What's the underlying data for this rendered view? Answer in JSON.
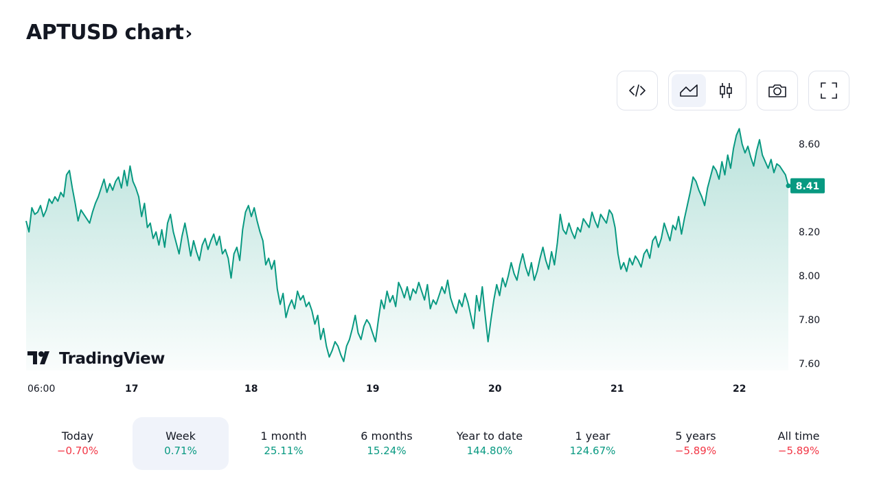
{
  "header": {
    "title": "APTUSD chart",
    "chevron": "›"
  },
  "toolbar": {
    "buttons": [
      {
        "name": "embed-code-icon"
      },
      {
        "name": "area-chart-icon",
        "active": true
      },
      {
        "name": "candlestick-chart-icon"
      },
      {
        "name": "camera-icon"
      },
      {
        "name": "fullscreen-icon"
      }
    ]
  },
  "chart_data": {
    "type": "area",
    "title": "APTUSD chart",
    "xlabel": "",
    "ylabel": "",
    "x_ticks": [
      "06:00",
      "17",
      "18",
      "19",
      "20",
      "21",
      "22"
    ],
    "y_ticks": [
      "8.60",
      "8.20",
      "8.00",
      "7.80",
      "7.60"
    ],
    "ylim": [
      7.55,
      8.68
    ],
    "last_value": "8.41",
    "colors": {
      "line": "#089981",
      "fill_top": "#089981",
      "label_bg": "#089981"
    },
    "grid": false,
    "watermark": "TradingView",
    "series": [
      {
        "values": [
          8.25,
          8.2,
          8.31,
          8.28,
          8.29,
          8.32,
          8.27,
          8.3,
          8.35,
          8.33,
          8.36,
          8.34,
          8.38,
          8.36,
          8.46,
          8.48,
          8.4,
          8.33,
          8.25,
          8.3,
          8.28,
          8.26,
          8.24,
          8.29,
          8.33,
          8.36,
          8.4,
          8.44,
          8.38,
          8.42,
          8.39,
          8.43,
          8.45,
          8.4,
          8.48,
          8.41,
          8.5,
          8.43,
          8.4,
          8.36,
          8.27,
          8.33,
          8.22,
          8.24,
          8.17,
          8.2,
          8.14,
          8.21,
          8.13,
          8.24,
          8.28,
          8.2,
          8.15,
          8.1,
          8.18,
          8.24,
          8.17,
          8.09,
          8.16,
          8.11,
          8.07,
          8.14,
          8.17,
          8.12,
          8.16,
          8.19,
          8.14,
          8.18,
          8.1,
          8.12,
          8.08,
          7.99,
          8.1,
          8.13,
          8.07,
          8.21,
          8.29,
          8.32,
          8.27,
          8.31,
          8.25,
          8.2,
          8.16,
          8.05,
          8.08,
          8.03,
          8.07,
          7.94,
          7.87,
          7.92,
          7.81,
          7.86,
          7.89,
          7.85,
          7.93,
          7.89,
          7.91,
          7.86,
          7.88,
          7.84,
          7.78,
          7.82,
          7.71,
          7.76,
          7.68,
          7.63,
          7.66,
          7.7,
          7.68,
          7.64,
          7.61,
          7.68,
          7.71,
          7.76,
          7.82,
          7.74,
          7.71,
          7.77,
          7.8,
          7.78,
          7.74,
          7.7,
          7.8,
          7.89,
          7.85,
          7.93,
          7.88,
          7.91,
          7.86,
          7.97,
          7.94,
          7.9,
          7.95,
          7.89,
          7.94,
          7.92,
          7.97,
          7.93,
          7.89,
          7.96,
          7.85,
          7.89,
          7.87,
          7.91,
          7.95,
          7.92,
          7.98,
          7.9,
          7.86,
          7.83,
          7.89,
          7.86,
          7.92,
          7.88,
          7.82,
          7.76,
          7.91,
          7.84,
          7.95,
          7.82,
          7.7,
          7.8,
          7.89,
          7.96,
          7.91,
          7.99,
          7.95,
          8.0,
          8.06,
          8.01,
          7.98,
          8.05,
          8.1,
          8.04,
          8.0,
          8.06,
          7.98,
          8.02,
          8.08,
          8.13,
          8.07,
          8.03,
          8.11,
          8.05,
          8.15,
          8.28,
          8.21,
          8.19,
          8.24,
          8.2,
          8.17,
          8.22,
          8.2,
          8.26,
          8.24,
          8.22,
          8.29,
          8.25,
          8.22,
          8.28,
          8.26,
          8.24,
          8.3,
          8.28,
          8.22,
          8.1,
          8.03,
          8.06,
          8.02,
          8.08,
          8.05,
          8.09,
          8.07,
          8.04,
          8.1,
          8.12,
          8.08,
          8.16,
          8.18,
          8.13,
          8.17,
          8.24,
          8.2,
          8.16,
          8.23,
          8.21,
          8.27,
          8.19,
          8.26,
          8.32,
          8.38,
          8.45,
          8.43,
          8.39,
          8.36,
          8.32,
          8.4,
          8.45,
          8.5,
          8.48,
          8.44,
          8.52,
          8.46,
          8.55,
          8.49,
          8.58,
          8.64,
          8.67,
          8.6,
          8.56,
          8.59,
          8.54,
          8.5,
          8.57,
          8.62,
          8.55,
          8.52,
          8.49,
          8.53,
          8.47,
          8.51,
          8.5,
          8.48,
          8.46,
          8.41
        ]
      }
    ]
  },
  "periods": [
    {
      "label": "Today",
      "value": "−0.70%",
      "dir": "neg"
    },
    {
      "label": "Week",
      "value": "0.71%",
      "dir": "pos",
      "active": true
    },
    {
      "label": "1 month",
      "value": "25.11%",
      "dir": "pos"
    },
    {
      "label": "6 months",
      "value": "15.24%",
      "dir": "pos"
    },
    {
      "label": "Year to date",
      "value": "144.80%",
      "dir": "pos"
    },
    {
      "label": "1 year",
      "value": "124.67%",
      "dir": "pos"
    },
    {
      "label": "5 years",
      "value": "−5.89%",
      "dir": "neg"
    },
    {
      "label": "All time",
      "value": "−5.89%",
      "dir": "neg"
    }
  ]
}
